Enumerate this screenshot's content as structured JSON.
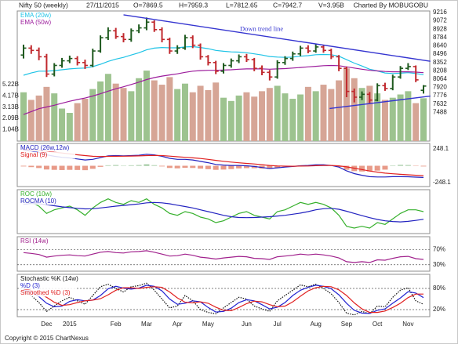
{
  "header": {
    "title": "Nifty 50 (weekly)",
    "date": "27/11/2015",
    "quote": [
      "O=7869.5",
      "H=7959.3",
      "L=7812.65",
      "C=7942.7",
      "V=3.95B"
    ],
    "credit": "Charted By MOBUGOBU"
  },
  "footer": "Copyright © 2015 ChartNexus",
  "chart_data": [
    {
      "type": "candlestick",
      "categories": [
        null,
        null,
        null,
        "Dec",
        null,
        null,
        "2015",
        null,
        null,
        null,
        null,
        null,
        "Feb",
        null,
        null,
        null,
        "Mar",
        null,
        null,
        null,
        "Apr",
        null,
        null,
        null,
        "May",
        null,
        null,
        null,
        null,
        "Jun",
        null,
        null,
        null,
        "Jul",
        null,
        null,
        null,
        null,
        "Aug",
        null,
        null,
        null,
        "Sep",
        null,
        null,
        null,
        "Oct",
        null,
        null,
        null,
        "Nov",
        null,
        null
      ],
      "open": [
        8480,
        8600,
        8560,
        8450,
        8150,
        8300,
        8380,
        8420,
        8350,
        8300,
        8550,
        8780,
        8900,
        8800,
        8750,
        8900,
        8950,
        9050,
        8920,
        8750,
        8550,
        8600,
        8780,
        8650,
        8450,
        8350,
        8200,
        8300,
        8380,
        8450,
        8400,
        8250,
        8180,
        8100,
        8350,
        8420,
        8500,
        8600,
        8550,
        8620,
        8560,
        8450,
        8250,
        7850,
        7750,
        7800,
        7700,
        7950,
        7900,
        8100,
        8250,
        8280,
        7869.5
      ],
      "high": [
        8660,
        8650,
        8610,
        8500,
        8340,
        8430,
        8470,
        8460,
        8400,
        8590,
        8820,
        8960,
        8950,
        8860,
        8940,
        9010,
        9130,
        9080,
        8960,
        8780,
        8650,
        8830,
        8820,
        8680,
        8480,
        8380,
        8340,
        8420,
        8490,
        8500,
        8430,
        8300,
        8220,
        8390,
        8460,
        8540,
        8640,
        8650,
        8670,
        8660,
        8590,
        8480,
        8280,
        7900,
        7850,
        7840,
        7990,
        8000,
        8140,
        8290,
        8340,
        8300,
        7959.3
      ],
      "low": [
        8420,
        8500,
        8390,
        8100,
        8110,
        8260,
        8340,
        8300,
        8240,
        8270,
        8520,
        8740,
        8760,
        8700,
        8710,
        8860,
        8910,
        8880,
        8700,
        8500,
        8500,
        8570,
        8600,
        8400,
        8300,
        8150,
        8160,
        8260,
        8340,
        8360,
        8200,
        8130,
        8040,
        8070,
        8310,
        8380,
        8460,
        8510,
        8520,
        8520,
        8410,
        8200,
        7750,
        7660,
        7700,
        7640,
        7680,
        7860,
        7870,
        8070,
        8220,
        8010,
        7812.65
      ],
      "close": [
        8600,
        8560,
        8450,
        8150,
        8300,
        8380,
        8420,
        8350,
        8300,
        8550,
        8780,
        8900,
        8800,
        8750,
        8900,
        8950,
        9050,
        8920,
        8750,
        8550,
        8600,
        8780,
        8650,
        8450,
        8350,
        8200,
        8300,
        8380,
        8450,
        8400,
        8250,
        8180,
        8100,
        8350,
        8420,
        8500,
        8600,
        8550,
        8620,
        8560,
        8450,
        8250,
        7850,
        7750,
        7800,
        7700,
        7950,
        7900,
        8100,
        8250,
        8280,
        8050,
        7942.7
      ],
      "up_color": "#1f5a1f",
      "down_color": "#c0282d",
      "volume": {
        "axis": "y2",
        "up_color": "#9dc38f",
        "down_color": "#d6a596",
        "values": [
          4.5,
          3.8,
          4.2,
          5.0,
          4.4,
          3.0,
          2.6,
          3.5,
          3.9,
          4.8,
          5.5,
          6.2,
          5.3,
          4.9,
          4.6,
          5.8,
          6.5,
          5.6,
          5.2,
          5.9,
          4.8,
          5.3,
          4.5,
          5.1,
          4.7,
          5.4,
          4.0,
          3.7,
          4.2,
          4.5,
          4.1,
          4.6,
          4.9,
          5.1,
          4.4,
          3.9,
          4.3,
          5.0,
          4.6,
          5.2,
          4.8,
          5.6,
          6.7,
          5.8,
          4.9,
          5.1,
          4.4,
          3.8,
          4.0,
          4.3,
          4.6,
          3.5,
          3.95
        ]
      },
      "series": [
        {
          "name": "EMA (20w)",
          "color": "#1ec3e6",
          "values": [
            8130,
            8170,
            8200,
            8200,
            8210,
            8225,
            8240,
            8250,
            8255,
            8280,
            8320,
            8370,
            8410,
            8440,
            8480,
            8520,
            8570,
            8600,
            8610,
            8605,
            8605,
            8620,
            8625,
            8610,
            8590,
            8560,
            8545,
            8535,
            8530,
            8520,
            8500,
            8480,
            8455,
            8445,
            8440,
            8445,
            8460,
            8470,
            8485,
            8490,
            8485,
            8460,
            8400,
            8340,
            8290,
            8235,
            8205,
            8170,
            8160,
            8165,
            8175,
            8160,
            8140
          ]
        },
        {
          "name": "EMA (50w)",
          "color": "#9c1c9c",
          "values": [
            7450,
            7500,
            7550,
            7580,
            7610,
            7645,
            7680,
            7710,
            7735,
            7770,
            7810,
            7855,
            7895,
            7930,
            7970,
            8010,
            8055,
            8090,
            8115,
            8135,
            8155,
            8180,
            8200,
            8210,
            8215,
            8215,
            8220,
            8225,
            8235,
            8240,
            8240,
            8240,
            8235,
            8240,
            8245,
            8255,
            8265,
            8275,
            8285,
            8295,
            8300,
            8295,
            8275,
            8255,
            8235,
            8215,
            8205,
            8195,
            8190,
            8190,
            8190,
            8185,
            8175
          ]
        }
      ],
      "trend_lines": [
        {
          "label": "Down trend line",
          "color": "#3535d0",
          "x": [
            13,
            52.9
          ],
          "y": [
            9176,
            8372
          ]
        },
        {
          "color": "#3535d0",
          "x": [
            39.8,
            52.9
          ],
          "y": [
            7554,
            7769
          ]
        }
      ],
      "ylim": [
        6990,
        9243
      ],
      "yticks": [
        9216,
        9072,
        8928,
        8784,
        8640,
        8496,
        8352,
        8208,
        8064,
        7920,
        7776,
        7632,
        7488
      ],
      "y2lim": [
        0,
        12
      ],
      "y2ticks": [
        {
          "value": 5.22,
          "label": "5.22B"
        },
        {
          "value": 4.17,
          "label": "4.17B"
        },
        {
          "value": 3.13,
          "label": "3.13B"
        },
        {
          "value": 2.09,
          "label": "2.09B"
        },
        {
          "value": 1.04,
          "label": "1.04B"
        }
      ],
      "grid": false
    },
    {
      "type": "macd",
      "series": [
        {
          "name": "MACD (26w,12w)",
          "color": "#2222c0",
          "values": [
            230,
            215,
            195,
            160,
            140,
            125,
            115,
            100,
            85,
            95,
            120,
            145,
            150,
            145,
            150,
            155,
            170,
            160,
            140,
            110,
            95,
            95,
            85,
            65,
            45,
            20,
            10,
            5,
            5,
            0,
            -10,
            -25,
            -40,
            -30,
            -20,
            -10,
            0,
            5,
            15,
            15,
            5,
            -20,
            -75,
            -115,
            -140,
            -160,
            -165,
            -165,
            -160,
            -160,
            -162,
            -168,
            -172
          ]
        },
        {
          "name": "Signal (9)",
          "color": "#e02020",
          "values": [
            240,
            235,
            228,
            215,
            200,
            188,
            175,
            162,
            150,
            140,
            136,
            138,
            140,
            141,
            143,
            145,
            150,
            152,
            150,
            142,
            133,
            125,
            117,
            107,
            95,
            80,
            66,
            54,
            44,
            35,
            26,
            16,
            5,
            -2,
            -6,
            -7,
            -5,
            -3,
            1,
            4,
            4,
            -1,
            -16,
            -36,
            -56,
            -77,
            -94,
            -108,
            -118,
            -126,
            -133,
            -140,
            -146
          ]
        }
      ],
      "histogram": {
        "up_color": "#8fbf8f",
        "down_color": "#e89a88",
        "values": [
          -10,
          -20,
          -33,
          -55,
          -60,
          -63,
          -60,
          -62,
          -65,
          -45,
          -16,
          7,
          10,
          4,
          7,
          10,
          20,
          8,
          -10,
          -32,
          -38,
          -30,
          -32,
          -42,
          -50,
          -60,
          -56,
          -49,
          -39,
          -35,
          -36,
          -41,
          -45,
          -28,
          -14,
          -3,
          5,
          8,
          14,
          11,
          1,
          -19,
          -59,
          -79,
          -84,
          -83,
          -71,
          -57,
          5,
          12,
          10,
          -5,
          -10
        ]
      },
      "ylim": [
        -306,
        329
      ],
      "yticks": [
        248.1,
        -248.1
      ],
      "grid": false
    },
    {
      "type": "line",
      "series": [
        {
          "name": "ROC (10w)",
          "color": "#36b02c",
          "values": [
            6,
            5,
            3,
            -1,
            1,
            2,
            3,
            1,
            -2,
            2,
            5,
            7,
            5,
            4,
            6,
            5,
            7,
            4,
            2,
            -1,
            -2,
            0,
            -1,
            -3,
            -4,
            -6,
            -5,
            -3,
            -1,
            0,
            -2,
            -3,
            -4,
            0,
            1,
            3,
            5,
            4,
            5,
            4,
            2,
            -2,
            -8,
            -9,
            -8,
            -9,
            -6,
            -7,
            -4,
            -1,
            1,
            1,
            0
          ]
        },
        {
          "name": "ROCMA (10)",
          "color": "#2222c0",
          "values": [
            4,
            4.5,
            4.3,
            3.8,
            3.2,
            2.6,
            2.2,
            1.8,
            1.5,
            1.6,
            2,
            2.5,
            3,
            3.4,
            3.8,
            4.2,
            4.8,
            5,
            4.8,
            4.3,
            3.5,
            2.8,
            2,
            1,
            0,
            -1,
            -2,
            -2.8,
            -3.2,
            -3.3,
            -3.2,
            -3,
            -2.8,
            -2.4,
            -2,
            -1.4,
            -0.8,
            0,
            1,
            1.6,
            1.8,
            1.3,
            0.2,
            -1,
            -2.2,
            -3.3,
            -4.3,
            -5,
            -5.4,
            -5.6,
            -5.3,
            -4.8,
            -4.2
          ]
        }
      ],
      "ylim": [
        -12,
        12
      ],
      "grid": false
    },
    {
      "type": "line",
      "series": [
        {
          "name": "RSI (14w)",
          "color": "#a0208c",
          "values": [
            62,
            60,
            57,
            50,
            53,
            55,
            56,
            54,
            53,
            58,
            63,
            65,
            62,
            61,
            64,
            65,
            67,
            63,
            58,
            53,
            54,
            58,
            55,
            50,
            48,
            45,
            48,
            50,
            52,
            51,
            47,
            46,
            44,
            51,
            53,
            55,
            58,
            56,
            58,
            56,
            53,
            48,
            38,
            36,
            38,
            36,
            43,
            42,
            47,
            51,
            52,
            46,
            44
          ]
        }
      ],
      "ylim": [
        13,
        104
      ],
      "yticks": [
        {
          "value": 70,
          "label": "70%"
        },
        {
          "value": 30,
          "label": "30%"
        }
      ],
      "grid": "dashed"
    },
    {
      "type": "line",
      "series": [
        {
          "name": "Stochastic %K (14w)",
          "color": "#111111",
          "style": "dotted",
          "values": [
            70,
            60,
            40,
            15,
            30,
            45,
            55,
            45,
            35,
            60,
            85,
            92,
            80,
            70,
            85,
            88,
            95,
            75,
            50,
            25,
            30,
            60,
            45,
            20,
            12,
            8,
            25,
            40,
            55,
            50,
            30,
            22,
            15,
            45,
            60,
            75,
            90,
            85,
            92,
            80,
            65,
            40,
            10,
            5,
            15,
            8,
            30,
            28,
            55,
            75,
            82,
            45,
            35
          ]
        },
        {
          "name": "%D (3)",
          "color": "#2222d0",
          "values": [
            75,
            70,
            57,
            38,
            28,
            30,
            43,
            48,
            45,
            47,
            60,
            79,
            86,
            81,
            78,
            81,
            89,
            86,
            73,
            50,
            35,
            38,
            45,
            42,
            26,
            13,
            15,
            24,
            40,
            48,
            45,
            34,
            22,
            27,
            40,
            60,
            75,
            83,
            89,
            86,
            79,
            62,
            38,
            18,
            10,
            9,
            18,
            22,
            38,
            53,
            71,
            67,
            54
          ]
        },
        {
          "name": "Smoothed %D (3)",
          "color": "#e02020",
          "values": [
            78,
            74,
            67,
            55,
            41,
            32,
            34,
            40,
            45,
            47,
            51,
            62,
            75,
            82,
            82,
            80,
            83,
            85,
            83,
            70,
            53,
            41,
            39,
            42,
            38,
            27,
            18,
            17,
            26,
            37,
            44,
            42,
            34,
            28,
            30,
            42,
            58,
            73,
            82,
            86,
            85,
            76,
            60,
            39,
            22,
            12,
            12,
            16,
            26,
            38,
            54,
            64,
            64
          ]
        }
      ],
      "ylim": [
        0,
        120
      ],
      "yticks": [
        {
          "value": 80,
          "label": "80%"
        },
        {
          "value": 20,
          "label": "20%"
        }
      ],
      "grid": "dashed"
    }
  ]
}
